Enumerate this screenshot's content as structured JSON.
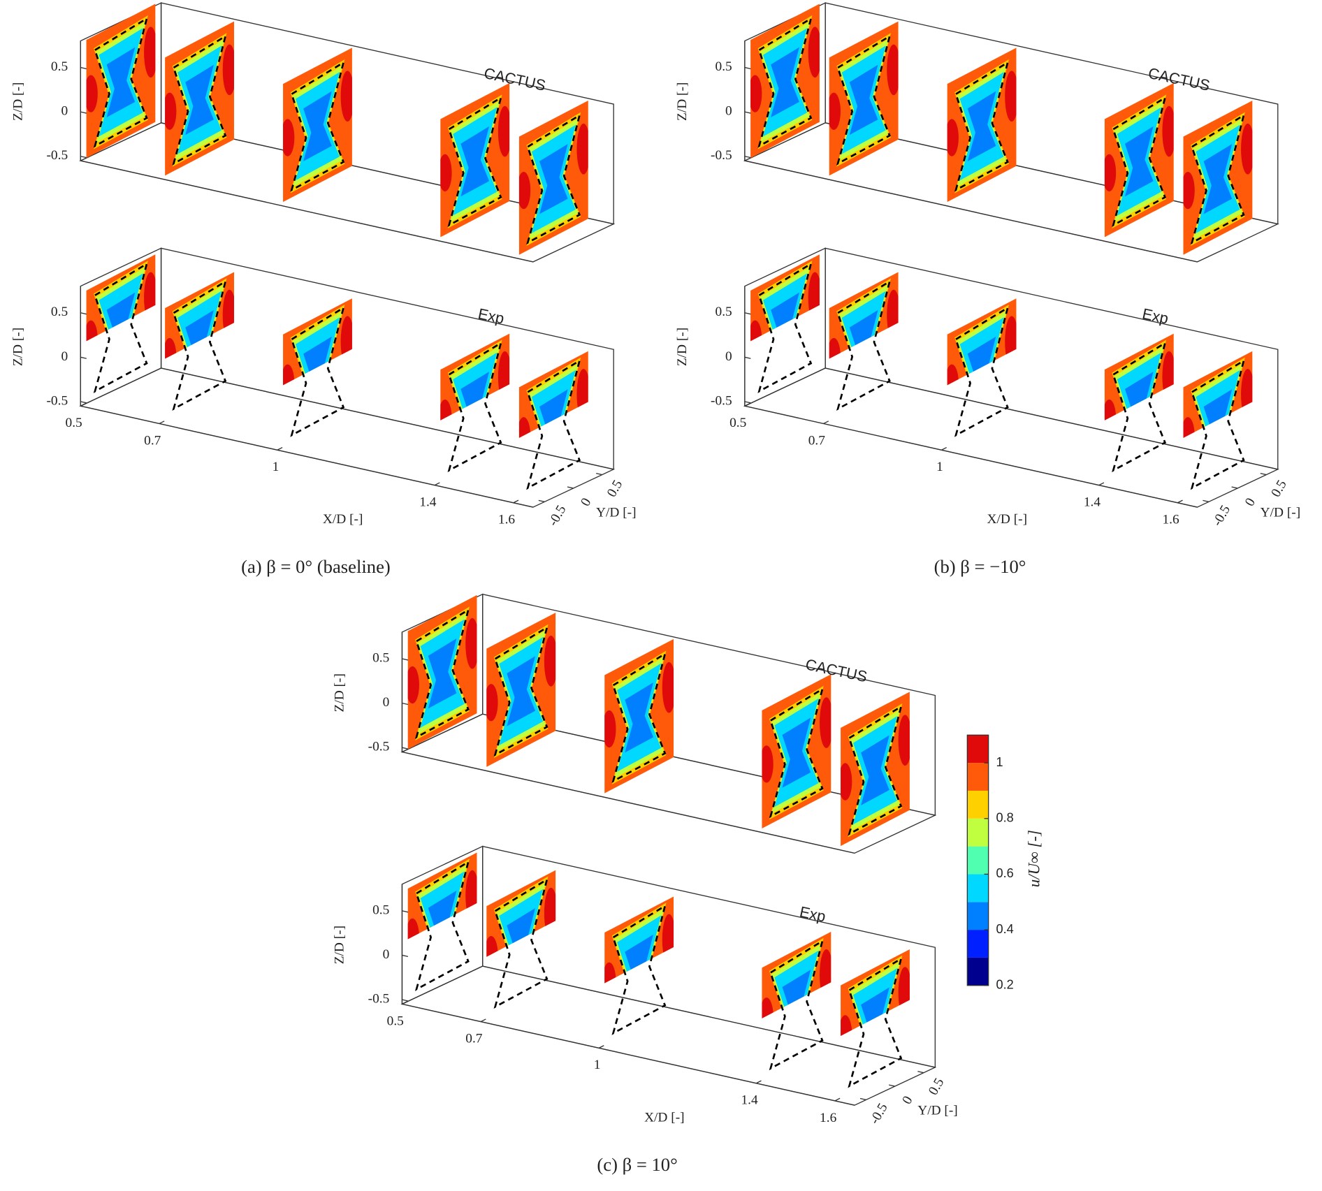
{
  "chart_data": [
    {
      "type": "slices3d",
      "title": "CACTUS",
      "zlabel": "Z/D [-]",
      "zticks": [
        -0.5,
        0,
        0.5
      ],
      "xlim": [
        0.5,
        1.65
      ],
      "ylim": [
        -0.7,
        0.7
      ],
      "zlim": [
        -0.55,
        0.8
      ],
      "slices": [
        0.5,
        0.7,
        1,
        1.4,
        1.6
      ]
    },
    {
      "type": "slices3d",
      "title": "Exp",
      "zlabel": "Z/D [-]",
      "zticks": [
        -0.5,
        0,
        0.5
      ],
      "xlabel": "X/D [-]",
      "xticks": [
        0.5,
        0.7,
        1,
        1.4,
        1.6
      ],
      "ylabel": "Y/D [-]",
      "yticks": [
        -0.5,
        0,
        0.5
      ],
      "xlim": [
        0.5,
        1.65
      ],
      "ylim": [
        -0.7,
        0.7
      ],
      "zlim": [
        -0.55,
        0.8
      ],
      "slices": [
        0.5,
        0.7,
        1,
        1.4,
        1.6
      ],
      "caption": "(a) β = 0° (baseline)"
    },
    {
      "type": "slices3d",
      "title": "CACTUS",
      "zlabel": "Z/D [-]",
      "zticks": [
        -0.5,
        0,
        0.5
      ],
      "xlim": [
        0.5,
        1.65
      ],
      "ylim": [
        -0.7,
        0.7
      ],
      "zlim": [
        -0.55,
        0.8
      ],
      "slices": [
        0.5,
        0.7,
        1,
        1.4,
        1.6
      ]
    },
    {
      "type": "slices3d",
      "title": "Exp",
      "zlabel": "Z/D [-]",
      "zticks": [
        -0.5,
        0,
        0.5
      ],
      "xlabel": "X/D [-]",
      "xticks": [
        0.5,
        0.7,
        1,
        1.4,
        1.6
      ],
      "ylabel": "Y/D [-]",
      "yticks": [
        -0.5,
        0,
        0.5
      ],
      "xlim": [
        0.5,
        1.65
      ],
      "ylim": [
        -0.7,
        0.7
      ],
      "zlim": [
        -0.55,
        0.8
      ],
      "slices": [
        0.5,
        0.7,
        1,
        1.4,
        1.6
      ],
      "caption": "(b) β = −10°"
    },
    {
      "type": "slices3d",
      "title": "CACTUS",
      "zlabel": "Z/D [-]",
      "zticks": [
        -0.5,
        0,
        0.5
      ],
      "xlim": [
        0.5,
        1.65
      ],
      "ylim": [
        -0.7,
        0.7
      ],
      "zlim": [
        -0.55,
        0.8
      ],
      "slices": [
        0.5,
        0.7,
        1,
        1.4,
        1.6
      ],
      "colorbar": {
        "label": "u/U∞ [-]",
        "clim": [
          0.2,
          1.1
        ],
        "ticks": [
          0.2,
          0.4,
          0.6,
          0.8,
          1
        ],
        "colors": [
          "#00008f",
          "#0020ff",
          "#0080ff",
          "#00d8ff",
          "#50ffb0",
          "#c0ff40",
          "#ffd000",
          "#ff5a0a",
          "#e00a0a"
        ]
      }
    },
    {
      "type": "slices3d",
      "title": "Exp",
      "zlabel": "Z/D [-]",
      "zticks": [
        -0.5,
        0,
        0.5
      ],
      "xlabel": "X/D [-]",
      "xticks": [
        0.5,
        0.7,
        1,
        1.4,
        1.6
      ],
      "ylabel": "Y/D [-]",
      "yticks": [
        -0.5,
        0,
        0.5
      ],
      "xlim": [
        0.5,
        1.65
      ],
      "ylim": [
        -0.7,
        0.7
      ],
      "zlim": [
        -0.55,
        0.8
      ],
      "slices": [
        0.5,
        0.7,
        1,
        1.4,
        1.6
      ],
      "caption": "(c) β = 10°"
    }
  ]
}
